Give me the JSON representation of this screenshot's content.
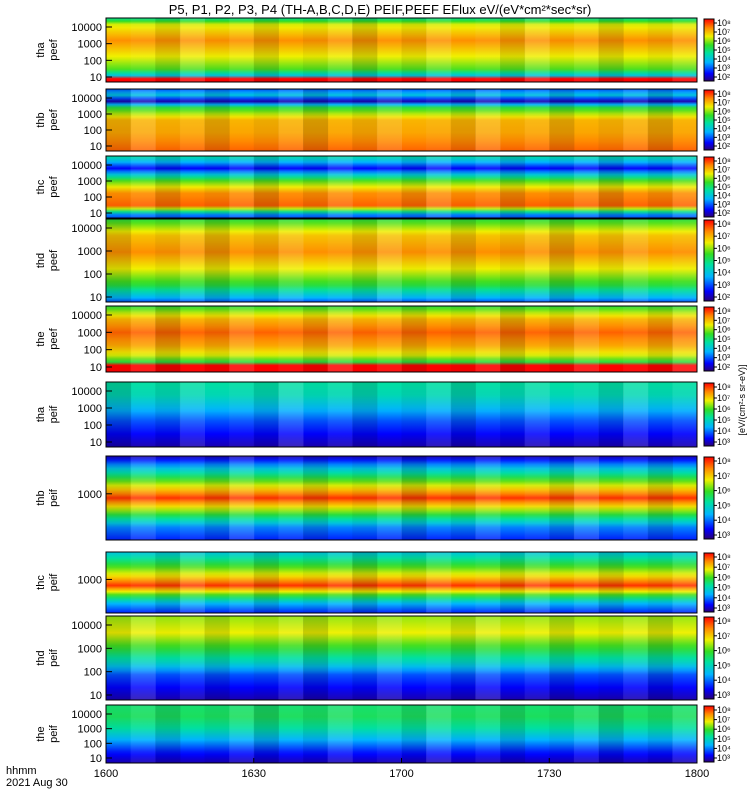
{
  "title": "P5, P1, P2, P3, P4 (TH-A,B,C,D,E) PEIF,PEEF EFlux eV/(eV*cm²*sec*sr)",
  "colorbar_unit": "[eV/(cm²-s sr-eV)]",
  "footer": {
    "hhmm": "hhmm",
    "date": "2021 Aug 30"
  },
  "chart_data": {
    "type": "heatmap",
    "x_axis": {
      "ticks": [
        "1600",
        "1630",
        "1700",
        "1730",
        "1800"
      ],
      "range": [
        "1600",
        "1800"
      ]
    },
    "y_scale": "log",
    "colormap": "rainbow (purple-blue-cyan-green-yellow-red)",
    "panels": [
      {
        "id": "tha-peef",
        "ylabel": [
          "tha",
          "peef"
        ],
        "yticks": [
          "10",
          "100",
          "1000",
          "10000"
        ],
        "cbar": [
          "10²",
          "10³",
          "10⁴",
          "10⁵",
          "10⁶",
          "10⁷",
          "10⁸"
        ]
      },
      {
        "id": "thb-peef",
        "ylabel": [
          "thb",
          "peef"
        ],
        "yticks": [
          "10",
          "100",
          "1000",
          "10000"
        ],
        "cbar": [
          "10²",
          "10³",
          "10⁴",
          "10⁵",
          "10⁶",
          "10⁷",
          "10⁸"
        ]
      },
      {
        "id": "thc-peef",
        "ylabel": [
          "thc",
          "peef"
        ],
        "yticks": [
          "10",
          "100",
          "1000",
          "10000"
        ],
        "cbar": [
          "10²",
          "10³",
          "10⁴",
          "10⁵",
          "10⁶",
          "10⁷",
          "10⁸"
        ]
      },
      {
        "id": "thd-peef",
        "ylabel": [
          "thd",
          "peef"
        ],
        "yticks": [
          "10",
          "100",
          "1000",
          "10000"
        ],
        "cbar": [
          "10²",
          "10³",
          "10⁴",
          "10⁵",
          "10⁶",
          "10⁷",
          "10⁸"
        ]
      },
      {
        "id": "the-peef",
        "ylabel": [
          "the",
          "peef"
        ],
        "yticks": [
          "10",
          "100",
          "1000",
          "10000"
        ],
        "cbar": [
          "10²",
          "10³",
          "10⁴",
          "10⁵",
          "10⁶",
          "10⁷",
          "10⁸"
        ]
      },
      {
        "id": "tha-peif",
        "ylabel": [
          "tha",
          "peif"
        ],
        "yticks": [
          "10",
          "100",
          "1000",
          "10000"
        ],
        "cbar": [
          "10³",
          "10⁴",
          "10⁵",
          "10⁶",
          "10⁷",
          "10⁸"
        ]
      },
      {
        "id": "thb-peif",
        "ylabel": [
          "thb",
          "peif"
        ],
        "yticks": [
          "1000"
        ],
        "cbar": [
          "10³",
          "10⁴",
          "10⁵",
          "10⁶",
          "10⁷",
          "10⁸"
        ]
      },
      {
        "id": "thc-peif",
        "ylabel": [
          "thc",
          "peif"
        ],
        "yticks": [
          "1000"
        ],
        "cbar": [
          "10³",
          "10⁴",
          "10⁵",
          "10⁶",
          "10⁷",
          "10⁸"
        ]
      },
      {
        "id": "thd-peif",
        "ylabel": [
          "thd",
          "peif"
        ],
        "yticks": [
          "10",
          "100",
          "1000",
          "10000"
        ],
        "cbar": [
          "10³",
          "10⁴",
          "10⁵",
          "10⁶",
          "10⁷",
          "10⁸"
        ]
      },
      {
        "id": "the-peif",
        "ylabel": [
          "the",
          "peif"
        ],
        "yticks": [
          "10",
          "100",
          "1000",
          "10000"
        ],
        "cbar": [
          "10³",
          "10⁴",
          "10⁵",
          "10⁶",
          "10⁷",
          "10⁸"
        ]
      }
    ]
  }
}
